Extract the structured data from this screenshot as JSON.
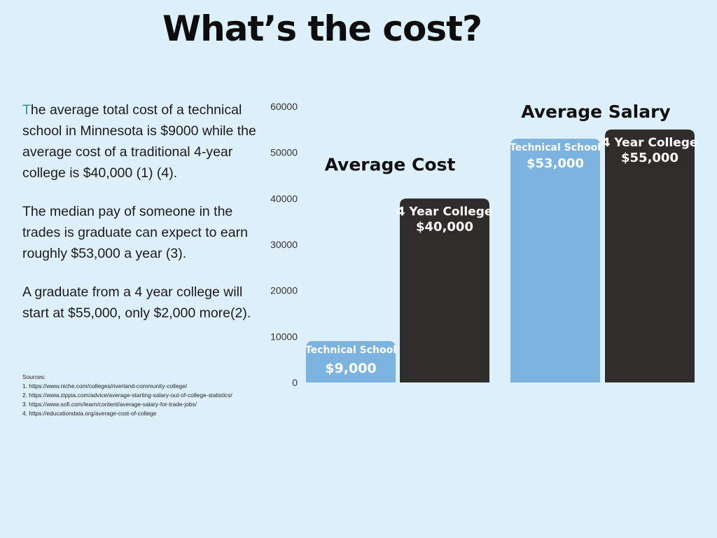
{
  "title": "What’s the cost?",
  "paragraphs": [
    "The average total cost of a technical school in Minnesota is $9000 while the average cost of a traditional 4-year college is $40,000 (1) (4).",
    "The median pay of someone in the trades is graduate can expect to earn roughly $53,000 a year (3).",
    "A graduate from a 4 year college will start at $55,000, only $2,000 more(2)."
  ],
  "sources": {
    "heading": "Sources:",
    "items": [
      "1. https://www.niche.com/colleges/riverland-community-college/",
      "2. https://www.zippia.com/advice/average-starting-salary-out-of-college-statistics/",
      "3. https://www.sofi.com/learn/content/average-salary-for-trade-jobs/",
      "4. https://educationdata.org/average-cost-of-college"
    ]
  },
  "chart_data": {
    "type": "bar",
    "ylim": [
      0,
      60000
    ],
    "yticks": [
      0,
      10000,
      20000,
      30000,
      40000,
      50000,
      60000
    ],
    "ytick_labels": [
      "0",
      "10000",
      "20000",
      "30000",
      "40000",
      "50000",
      "60000"
    ],
    "grid": false,
    "groups": [
      {
        "title": "Average Cost",
        "bars": [
          {
            "name": "Technical School",
            "value": 9000,
            "value_label": "$9,000",
            "color": "#7db3df"
          },
          {
            "name": "4 Year College",
            "value": 40000,
            "value_label": "$40,000",
            "color": "#2f2d2c"
          }
        ]
      },
      {
        "title": "Average Salary",
        "bars": [
          {
            "name": "Technical School",
            "value": 53000,
            "value_label": "$53,000",
            "color": "#7db3df"
          },
          {
            "name": "4 Year College",
            "value": 55000,
            "value_label": "$55,000",
            "color": "#2f2d2c"
          }
        ]
      }
    ]
  }
}
